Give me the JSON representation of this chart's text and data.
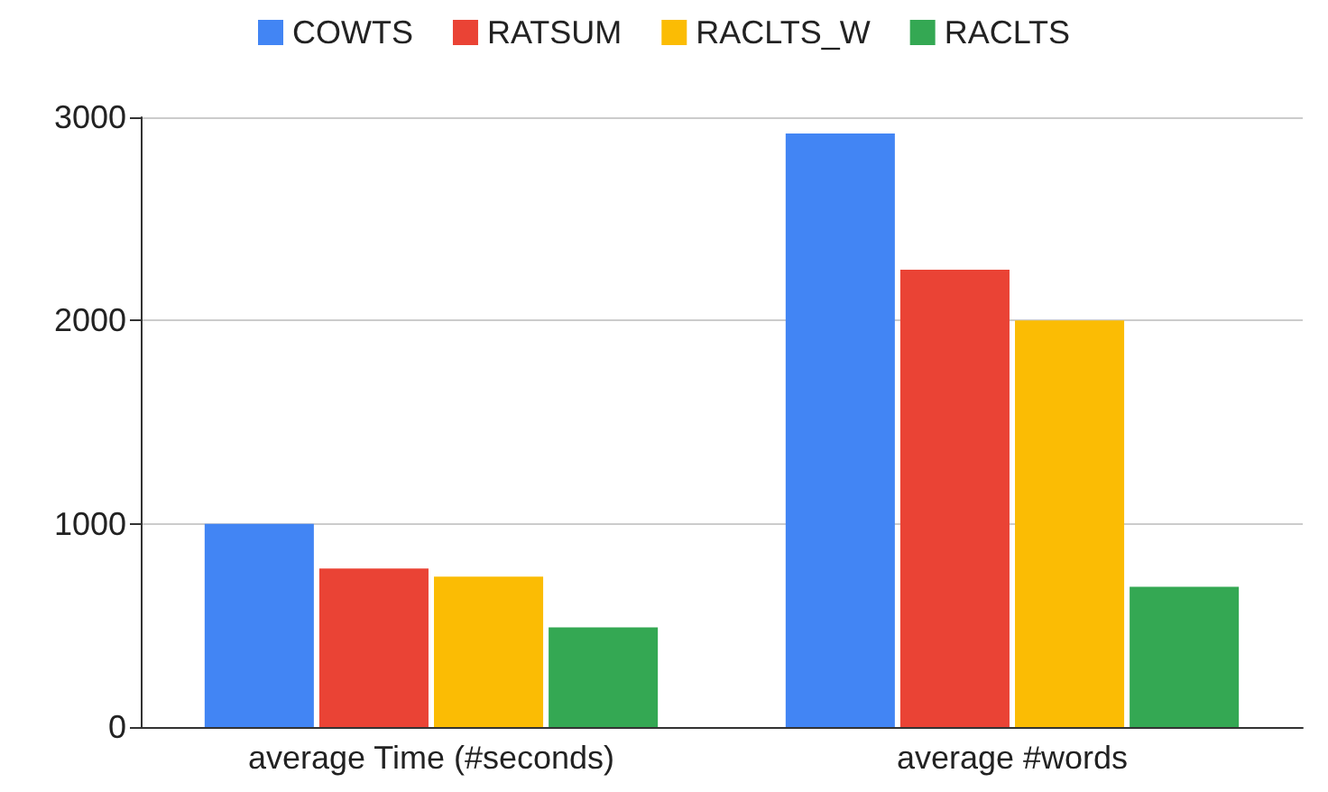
{
  "chart_data": {
    "type": "bar",
    "categories": [
      "average Time (#seconds)",
      "average #words"
    ],
    "series": [
      {
        "name": "COWTS",
        "color": "#4285f4",
        "values": [
          1000,
          2920
        ]
      },
      {
        "name": "RATSUM",
        "color": "#ea4335",
        "values": [
          780,
          2250
        ]
      },
      {
        "name": "RACLTS_W",
        "color": "#fbbc04",
        "values": [
          740,
          2000
        ]
      },
      {
        "name": "RACLTS",
        "color": "#34a853",
        "values": [
          490,
          690
        ]
      }
    ],
    "ylim": [
      0,
      3000
    ],
    "yticks": [
      0,
      {
        "value": 1000,
        "label": "1000"
      },
      {
        "value": 2000,
        "label": "2000"
      },
      {
        "value": 3000,
        "label": "3000"
      }
    ],
    "grid": "y",
    "legend": "top"
  }
}
